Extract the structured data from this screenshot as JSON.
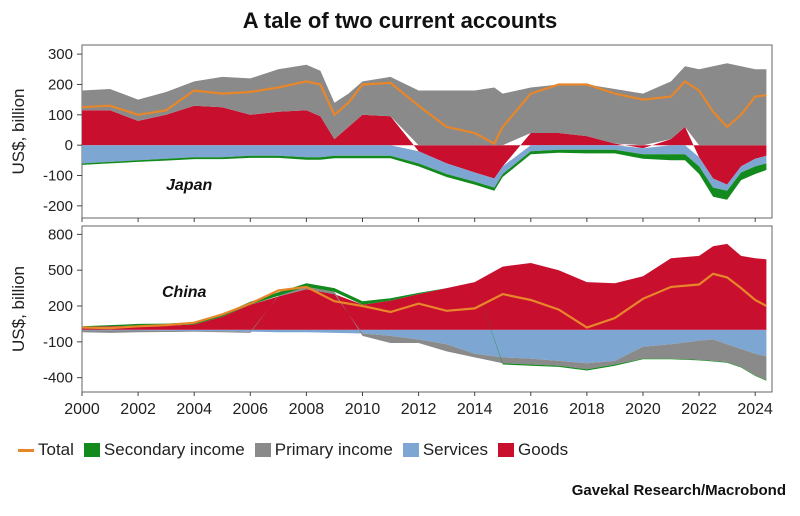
{
  "title": "A tale of two current accounts",
  "source": "Gavekal Research/Macrobond",
  "colors": {
    "total": "#e8862a",
    "secondary": "#138a1e",
    "primary": "#8a8a8a",
    "services": "#7ea6d2",
    "goods": "#c8102e"
  },
  "legend": [
    {
      "key": "total",
      "label": "Total",
      "kind": "line"
    },
    {
      "key": "secondary",
      "label": "Secondary income",
      "kind": "area"
    },
    {
      "key": "primary",
      "label": "Primary income",
      "kind": "area"
    },
    {
      "key": "services",
      "label": "Services",
      "kind": "area"
    },
    {
      "key": "goods",
      "label": "Goods",
      "kind": "area"
    }
  ],
  "chart_data": [
    {
      "type": "area",
      "panel_label": "Japan",
      "ylabel": "US$, billion",
      "ylim": [
        -240,
        330
      ],
      "yticks": [
        -200,
        -100,
        0,
        100,
        200,
        300
      ],
      "xlim": [
        2000,
        2024.6
      ],
      "xticks": [
        2000,
        2002,
        2004,
        2006,
        2008,
        2010,
        2012,
        2014,
        2016,
        2018,
        2020,
        2022,
        2024
      ],
      "x": [
        2000,
        2001,
        2002,
        2003,
        2004,
        2005,
        2006,
        2007,
        2008,
        2008.5,
        2009,
        2009.5,
        2010,
        2011,
        2012,
        2013,
        2014,
        2014.7,
        2015,
        2016,
        2017,
        2018,
        2019,
        2020,
        2021,
        2021.5,
        2022,
        2022.5,
        2023,
        2023.5,
        2024,
        2024.4
      ],
      "series": [
        {
          "key": "goods",
          "name": "Goods",
          "values": [
            115,
            115,
            80,
            100,
            130,
            125,
            100,
            110,
            115,
            95,
            20,
            60,
            100,
            95,
            -20,
            -60,
            -90,
            -110,
            -70,
            40,
            40,
            30,
            5,
            -10,
            20,
            60,
            -40,
            -110,
            -130,
            -70,
            -45,
            -35
          ]
        },
        {
          "key": "services",
          "name": "Services",
          "values": [
            -60,
            -55,
            -50,
            -45,
            -40,
            -40,
            -35,
            -35,
            -40,
            -40,
            -35,
            -35,
            -35,
            -35,
            -40,
            -35,
            -30,
            -30,
            -25,
            -20,
            -15,
            -15,
            -15,
            -20,
            -30,
            -30,
            -30,
            -30,
            -20,
            -20,
            -25,
            -25
          ]
        },
        {
          "key": "primary",
          "name": "Primary income",
          "values": [
            65,
            70,
            70,
            75,
            80,
            100,
            120,
            140,
            150,
            150,
            120,
            110,
            110,
            130,
            180,
            180,
            180,
            190,
            170,
            150,
            160,
            170,
            180,
            170,
            190,
            200,
            250,
            260,
            270,
            260,
            250,
            250
          ]
        },
        {
          "key": "secondary",
          "name": "Secondary income",
          "values": [
            -5,
            -5,
            -5,
            -6,
            -6,
            -6,
            -7,
            -7,
            -8,
            -8,
            -8,
            -8,
            -8,
            -8,
            -10,
            -10,
            -10,
            -10,
            -10,
            -10,
            -10,
            -12,
            -12,
            -15,
            -20,
            -20,
            -25,
            -30,
            -30,
            -25,
            -25,
            -22
          ]
        },
        {
          "key": "total",
          "name": "Total",
          "values": [
            125,
            130,
            100,
            115,
            180,
            170,
            175,
            190,
            210,
            200,
            100,
            140,
            200,
            205,
            130,
            60,
            40,
            5,
            60,
            170,
            200,
            200,
            170,
            150,
            160,
            210,
            180,
            110,
            60,
            100,
            160,
            165
          ]
        }
      ]
    },
    {
      "type": "area",
      "panel_label": "China",
      "ylabel": "US$, billion",
      "ylim": [
        -520,
        870
      ],
      "yticks": [
        -400,
        -100,
        200,
        500,
        800
      ],
      "xlim": [
        2000,
        2024.6
      ],
      "xticks": [
        2000,
        2002,
        2004,
        2006,
        2008,
        2010,
        2012,
        2014,
        2016,
        2018,
        2020,
        2022,
        2024
      ],
      "x": [
        2000,
        2001,
        2002,
        2003,
        2004,
        2005,
        2006,
        2007,
        2008,
        2009,
        2010,
        2011,
        2012,
        2013,
        2014,
        2015,
        2016,
        2017,
        2018,
        2019,
        2020,
        2021,
        2022,
        2022.5,
        2023,
        2023.5,
        2024,
        2024.4
      ],
      "series": [
        {
          "key": "goods",
          "name": "Goods",
          "values": [
            25,
            30,
            35,
            35,
            45,
            110,
            210,
            280,
            340,
            300,
            210,
            245,
            300,
            350,
            400,
            530,
            560,
            500,
            400,
            390,
            450,
            600,
            620,
            700,
            720,
            620,
            600,
            590
          ]
        },
        {
          "key": "services",
          "name": "Services",
          "values": [
            -5,
            -5,
            -5,
            -8,
            -10,
            -10,
            -15,
            -20,
            -20,
            -25,
            -30,
            -50,
            -80,
            -120,
            -200,
            -230,
            -240,
            -260,
            -280,
            -260,
            -140,
            -120,
            -90,
            -80,
            -120,
            -160,
            -200,
            -220
          ]
        },
        {
          "key": "primary",
          "name": "Primary income",
          "values": [
            -15,
            -20,
            -15,
            -10,
            -5,
            -10,
            -10,
            5,
            20,
            20,
            -20,
            -60,
            -30,
            -60,
            -30,
            -50,
            -50,
            -40,
            -50,
            -30,
            -100,
            -120,
            -160,
            -180,
            -150,
            -150,
            -180,
            -200
          ]
        },
        {
          "key": "secondary",
          "name": "Secondary income",
          "values": [
            5,
            10,
            15,
            18,
            20,
            20,
            25,
            30,
            30,
            30,
            30,
            20,
            10,
            0,
            0,
            -10,
            -10,
            -10,
            -10,
            -10,
            -5,
            -5,
            -5,
            -5,
            -5,
            -5,
            -5,
            -5
          ]
        },
        {
          "key": "total",
          "name": "Total",
          "values": [
            20,
            15,
            30,
            40,
            60,
            130,
            220,
            330,
            360,
            240,
            200,
            150,
            220,
            160,
            180,
            300,
            250,
            170,
            20,
            100,
            260,
            360,
            380,
            470,
            440,
            350,
            250,
            200
          ]
        }
      ]
    }
  ]
}
